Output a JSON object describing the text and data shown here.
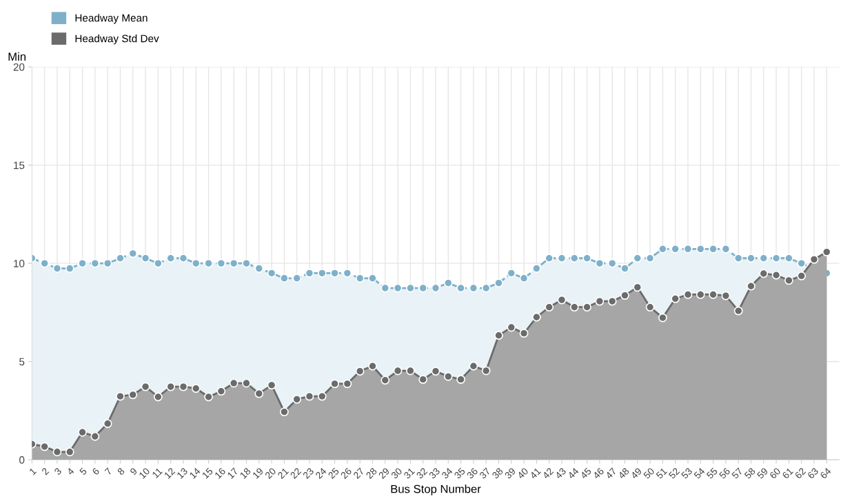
{
  "chart_data": {
    "type": "area",
    "xlabel": "Bus Stop Number",
    "ylabel": "Min",
    "categories": [
      "1",
      "2",
      "3",
      "4",
      "5",
      "6",
      "7",
      "8",
      "9",
      "10",
      "11",
      "12",
      "13",
      "14",
      "15",
      "16",
      "17",
      "18",
      "19",
      "20",
      "21",
      "22",
      "23",
      "24",
      "25",
      "26",
      "27",
      "28",
      "29",
      "30",
      "31",
      "32",
      "33",
      "34",
      "35",
      "36",
      "37",
      "38",
      "39",
      "40",
      "41",
      "42",
      "43",
      "44",
      "45",
      "46",
      "47",
      "48",
      "49",
      "50",
      "51",
      "52",
      "53",
      "54",
      "55",
      "56",
      "57",
      "58",
      "59",
      "60",
      "61",
      "62",
      "63",
      "64"
    ],
    "series": [
      {
        "name": "Headway Mean",
        "color": "#7fb0c9",
        "line_style": "dashed",
        "values": [
          10.26,
          10,
          9.74,
          9.74,
          10,
          10,
          10,
          10.26,
          10.5,
          10.26,
          10,
          10.26,
          10.26,
          10,
          10,
          10,
          10,
          10,
          9.74,
          9.5,
          9.24,
          9.24,
          9.5,
          9.5,
          9.5,
          9.5,
          9.24,
          9.24,
          8.74,
          8.74,
          8.74,
          8.74,
          8.74,
          9,
          8.74,
          8.74,
          8.74,
          9,
          9.5,
          9.24,
          9.74,
          10.26,
          10.26,
          10.26,
          10.26,
          10,
          10,
          9.74,
          10.26,
          10.26,
          10.73,
          10.73,
          10.73,
          10.73,
          10.73,
          10.73,
          10.26,
          10.26,
          10.26,
          10.26,
          10.26,
          10,
          9.74,
          9.5
        ]
      },
      {
        "name": "Headway Std Dev",
        "color": "#6b6b6b",
        "line_style": "solid",
        "values": [
          0.8,
          0.67,
          0.4,
          0.4,
          1.4,
          1.19,
          1.84,
          3.23,
          3.31,
          3.72,
          3.2,
          3.72,
          3.72,
          3.63,
          3.2,
          3.49,
          3.9,
          3.9,
          3.37,
          3.8,
          2.44,
          3.08,
          3.23,
          3.23,
          3.87,
          3.87,
          4.51,
          4.77,
          4.05,
          4.53,
          4.53,
          4.09,
          4.51,
          4.24,
          4.09,
          4.77,
          4.53,
          6.33,
          6.74,
          6.44,
          7.26,
          7.77,
          8.14,
          7.77,
          7.77,
          8.07,
          8.07,
          8.37,
          8.78,
          7.77,
          7.23,
          8.2,
          8.41,
          8.41,
          8.41,
          8.35,
          7.58,
          8.84,
          9.48,
          9.4,
          9.13,
          9.36,
          10.2,
          10.58
        ]
      }
    ],
    "ylim": [
      0,
      20
    ],
    "yticks": [
      0,
      5,
      10,
      15,
      20
    ],
    "grid": true,
    "legend": "top left",
    "marker": "circle"
  }
}
